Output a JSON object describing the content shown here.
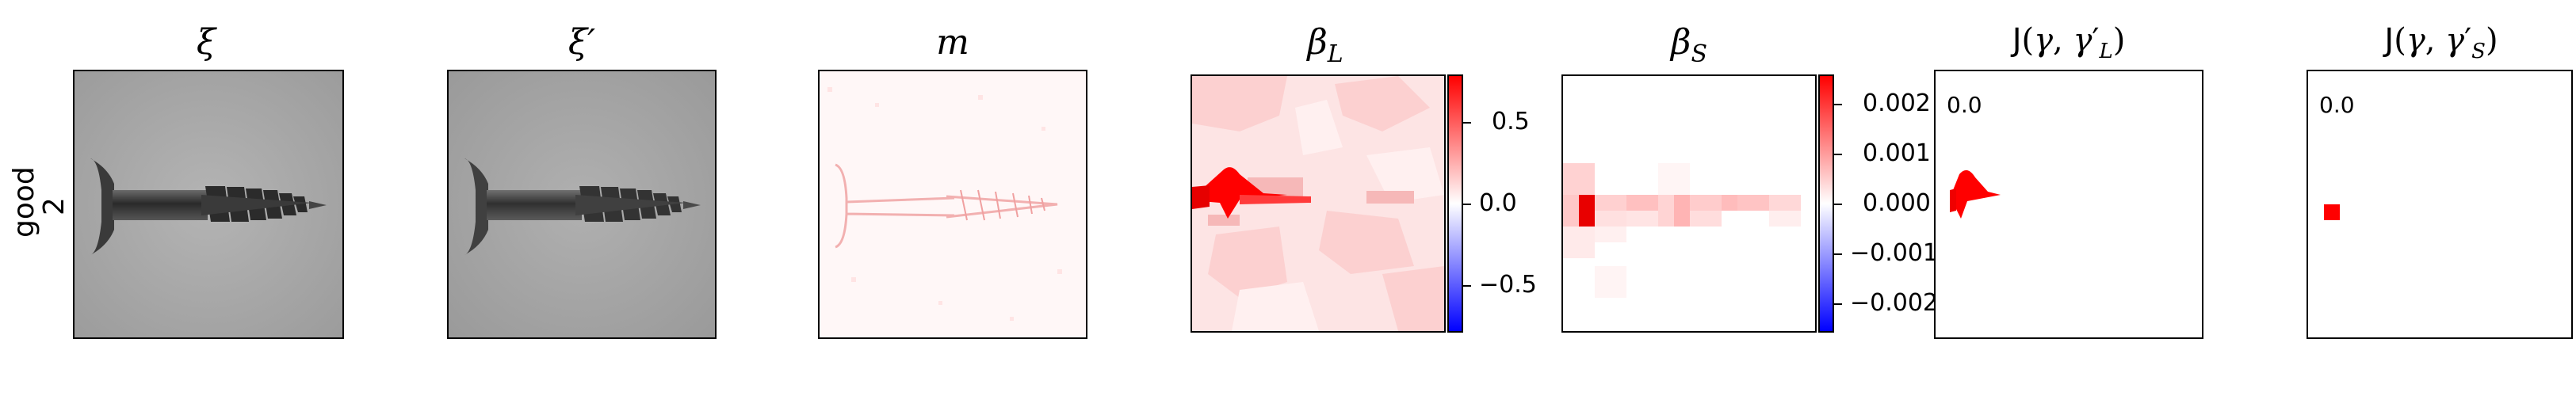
{
  "row_label": {
    "line1": "good",
    "line2": "2"
  },
  "panels": [
    {
      "title": "ξ"
    },
    {
      "title": "ξ′"
    },
    {
      "title": "m"
    },
    {
      "title": "β_L",
      "title_main": "β",
      "title_sub": "L",
      "colorbar": {
        "ticks": [
          "0.5",
          "0.0",
          "−0.5"
        ],
        "range": [
          -0.78,
          0.78
        ]
      }
    },
    {
      "title": "β_S",
      "title_main": "β",
      "title_sub": "S",
      "colorbar": {
        "ticks": [
          "0.002",
          "0.001",
          "0.000",
          "−0.001",
          "−0.002"
        ],
        "range": [
          -0.0026,
          0.0026
        ]
      }
    },
    {
      "title": "J(γ, γ′_L)",
      "value": "0.0"
    },
    {
      "title": "J(γ, γ′_S)",
      "value": "0.0"
    }
  ],
  "colors": {
    "red": "#ff0000",
    "blue": "#0000ff",
    "white": "#ffffff",
    "gray_bg": "#a8a8a8"
  }
}
